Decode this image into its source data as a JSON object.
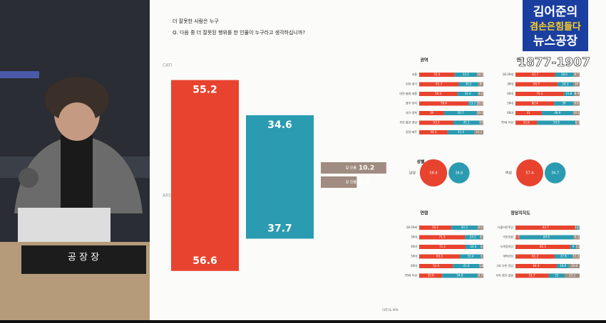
{
  "broadcast": {
    "show_line1": "김어준의",
    "show_line2": "겸손은힘들다",
    "show_line3": "뉴스공장",
    "phone": "1877-1907",
    "nameplate": "공 장 장"
  },
  "slide": {
    "title": "더 잘못한 사람은 누구",
    "question": "Q. 다음 중 더 잘못된 행위를 한 인물이 누구라고 생각하십니까?",
    "footer": "CATI & ARS",
    "colors": [
      "#e8432e",
      "#2a9bb0",
      "#a08c80"
    ],
    "main": {
      "cati_label": "CATI",
      "ars_label": "ARS",
      "unknown_label": "잘 모름",
      "cati": [
        55.2,
        34.6,
        10.2
      ],
      "ars": [
        56.6,
        37.7,
        5.6
      ]
    },
    "panels": [
      {
        "title": "권역",
        "rows": [
          {
            "label": "서울",
            "values": [
              55.4,
              34.5,
              10.2
            ]
          },
          {
            "label": "인천·경기",
            "values": [
              61.7,
              30.2,
              8.0
            ]
          },
          {
            "label": "대전·충청·세종",
            "values": [
              59.4,
              32.4,
              8.2
            ]
          },
          {
            "label": "광주·전라",
            "values": [
              76.4,
              13.2,
              10.3
            ]
          },
          {
            "label": "대구·경북",
            "values": [
              39.0,
              50.7,
              10.3
            ]
          },
          {
            "label": "부산·울산·경남",
            "values": [
              53.3,
              41.1,
              5.6
            ]
          },
          {
            "label": "강원·제주",
            "values": [
              44.3,
              41.4,
              14.3
            ]
          }
        ]
      },
      {
        "title": "연령",
        "rows": [
          {
            "label": "18-29세",
            "values": [
              61.7,
              28.6,
              9.7
            ]
          },
          {
            "label": "30대",
            "values": [
              65.7,
              24.3,
              10.0
            ]
          },
          {
            "label": "40대",
            "values": [
              75.3,
              15.8,
              8.9
            ]
          },
          {
            "label": "50대",
            "values": [
              60.4,
              30.0,
              9.6
            ]
          },
          {
            "label": "60대",
            "values": [
              41.0,
              48.9,
              10.1
            ]
          },
          {
            "label": "70세 이상",
            "values": [
              33.8,
              59.9,
              6.3
            ]
          }
        ]
      },
      {
        "title": "연령",
        "rows": [
          {
            "label": "18-29세",
            "values": [
              50.2,
              40.3,
              9.5
            ]
          },
          {
            "label": "30대",
            "values": [
              71.5,
              24.2,
              4.3
            ]
          },
          {
            "label": "40대",
            "values": [
              72.2,
              24.4,
              3.4
            ]
          },
          {
            "label": "50대",
            "values": [
              63.3,
              33.4,
              3.3
            ]
          },
          {
            "label": "60대",
            "values": [
              52.6,
              41.6,
              5.8
            ]
          },
          {
            "label": "70세 이상",
            "values": [
              35.9,
              54.8,
              9.3
            ]
          }
        ]
      },
      {
        "title": "정당지지도",
        "rows": [
          {
            "label": "더불어민주당",
            "values": [
              93.7,
              3.2,
              3.1
            ]
          },
          {
            "label": "국민의힘",
            "values": [
              5.8,
              84.9,
              9.3
            ]
          },
          {
            "label": "녹색정의당",
            "values": [
              85.5,
              9.0,
              5.5
            ]
          },
          {
            "label": "개혁신당",
            "values": [
              61.2,
              27.6,
              11.2
            ]
          },
          {
            "label": "그외 다른 정당",
            "values": [
              64.4,
              18.8,
              16.8
            ]
          },
          {
            "label": "지지 정당 없음",
            "values": [
              51.7,
              25.0,
              23.3
            ]
          }
        ]
      }
    ],
    "gender": {
      "title": "성별",
      "rows": [
        {
          "label": "남성",
          "values": [
            58.9,
            34.6
          ]
        },
        {
          "label": "여성",
          "values": [
            57.4,
            34.7
          ]
        }
      ]
    }
  }
}
